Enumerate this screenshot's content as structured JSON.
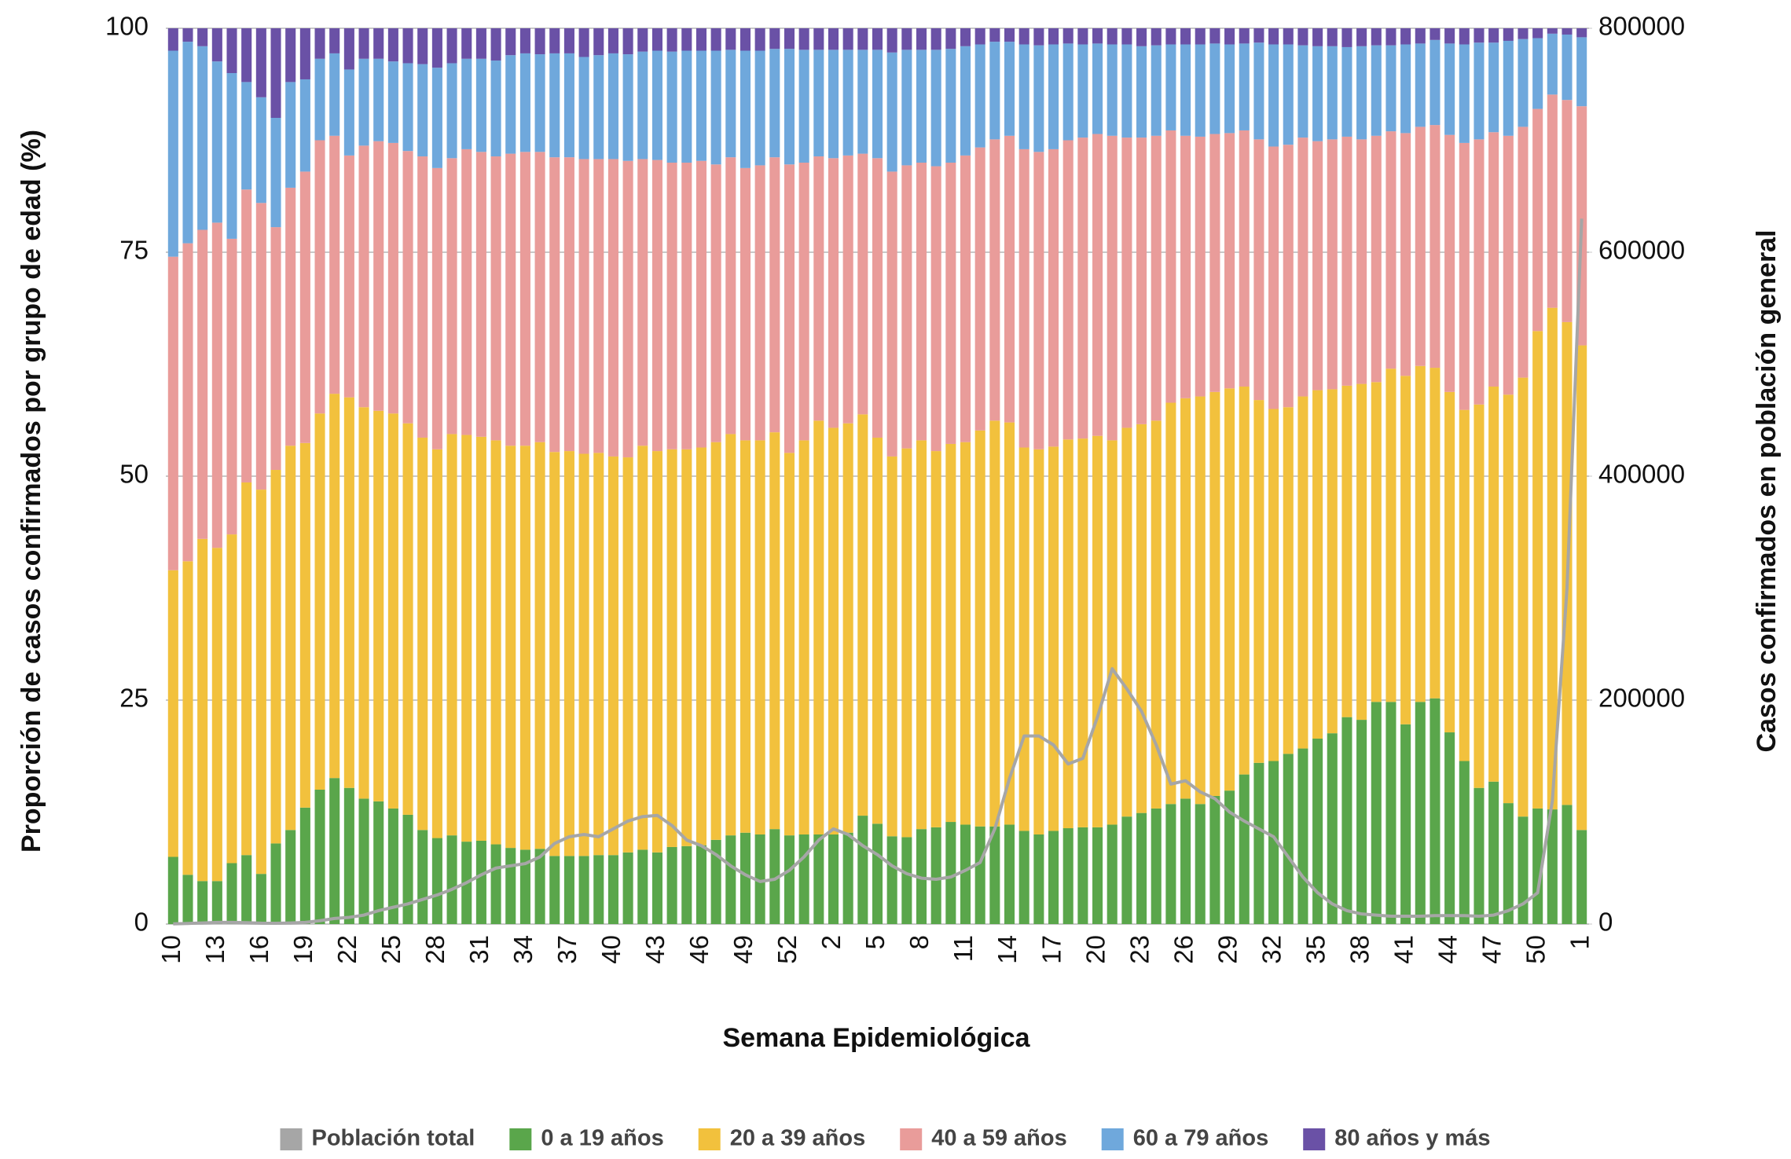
{
  "chart_data": {
    "type": "bar",
    "stacked": true,
    "x_label": "Semana Epidemiológica",
    "y_label": "Proporción de casos confirmados por grupo de edad (%)",
    "y2_label": "Casos confirmados en población general",
    "categories": [
      "10",
      null,
      null,
      "13",
      null,
      null,
      "16",
      null,
      null,
      "19",
      null,
      null,
      "22",
      null,
      null,
      "25",
      null,
      null,
      "28",
      null,
      null,
      "31",
      null,
      null,
      "34",
      null,
      null,
      "37",
      null,
      null,
      "40",
      null,
      null,
      "43",
      null,
      null,
      "46",
      null,
      null,
      "49",
      null,
      null,
      "52",
      null,
      null,
      "2",
      null,
      null,
      "5",
      null,
      null,
      "8",
      null,
      null,
      "11",
      null,
      null,
      "14",
      null,
      null,
      "17",
      null,
      null,
      "20",
      null,
      null,
      "23",
      null,
      null,
      "26",
      null,
      null,
      "29",
      null,
      null,
      "32",
      null,
      null,
      "35",
      null,
      null,
      "38",
      null,
      null,
      "41",
      null,
      null,
      "44",
      null,
      null,
      "47",
      null,
      null,
      "50",
      null,
      null,
      "1"
    ],
    "ylim": [
      0,
      100
    ],
    "yticks": [
      0,
      25,
      50,
      75,
      100
    ],
    "y2lim": [
      0,
      800000
    ],
    "y2ticks": [
      0,
      200000,
      400000,
      600000,
      800000
    ],
    "grid": true,
    "legend": "bottom",
    "series": [
      {
        "name": "Población total",
        "type": "line",
        "axis": "y2",
        "color": "#a6a6a6",
        "values": [
          200,
          500,
          1000,
          1500,
          1500,
          1200,
          800,
          700,
          1000,
          1500,
          3000,
          5000,
          6000,
          8000,
          12000,
          15000,
          18000,
          22000,
          26000,
          31000,
          37000,
          44000,
          50000,
          52000,
          54000,
          60000,
          72000,
          78000,
          80000,
          78000,
          85000,
          92000,
          96000,
          97000,
          88000,
          75000,
          70000,
          62000,
          52000,
          44000,
          38000,
          40000,
          48000,
          60000,
          75000,
          85000,
          80000,
          70000,
          62000,
          52000,
          45000,
          41000,
          40000,
          42000,
          48000,
          55000,
          85000,
          130000,
          168000,
          168000,
          160000,
          143000,
          148000,
          185000,
          228000,
          210000,
          190000,
          160000,
          125000,
          128000,
          118000,
          112000,
          100000,
          92000,
          85000,
          78000,
          60000,
          42000,
          28000,
          18000,
          12000,
          9000,
          8000,
          7000,
          7000,
          7000,
          7500,
          7500,
          7500,
          7000,
          8000,
          12000,
          18000,
          28000,
          110000,
          300000,
          630000
        ]
      },
      {
        "name": "0 a 19 años",
        "color": "#5aa64b",
        "values": [
          7.5,
          5.5,
          4.8,
          4.8,
          6.8,
          7.7,
          5.6,
          9.0,
          10.5,
          13.0,
          15.0,
          16.3,
          15.2,
          14.0,
          13.7,
          12.9,
          12.2,
          10.5,
          9.6,
          9.9,
          9.2,
          9.3,
          8.9,
          8.5,
          8.3,
          8.4,
          7.6,
          7.6,
          7.6,
          7.7,
          7.7,
          8.0,
          8.3,
          8.0,
          8.6,
          8.7,
          8.8,
          9.4,
          9.9,
          10.2,
          10.0,
          10.6,
          9.9,
          10.0,
          10.0,
          10.0,
          10.2,
          12.1,
          11.2,
          9.8,
          9.7,
          10.6,
          10.8,
          11.4,
          11.1,
          10.9,
          10.9,
          11.1,
          10.4,
          10.0,
          10.4,
          10.7,
          10.8,
          10.8,
          11.1,
          12.0,
          12.4,
          12.9,
          13.4,
          14.0,
          13.4,
          14.3,
          14.9,
          16.7,
          18.0,
          18.2,
          19.0,
          19.6,
          20.7,
          21.3,
          23.1,
          22.8,
          24.8,
          24.8,
          22.3,
          24.8,
          25.2,
          21.4,
          18.2,
          15.2,
          15.9,
          13.5,
          12.0,
          12.9,
          12.8,
          13.3,
          10.5
        ]
      },
      {
        "name": "20 a 39 años",
        "color": "#f2c13d",
        "values": [
          32.0,
          35.0,
          38.2,
          37.2,
          36.7,
          41.6,
          42.9,
          41.7,
          42.9,
          40.7,
          42.0,
          42.9,
          43.6,
          43.7,
          43.6,
          44.1,
          43.7,
          43.8,
          43.4,
          44.8,
          45.4,
          45.1,
          45.1,
          44.9,
          45.1,
          45.4,
          45.1,
          45.2,
          44.9,
          44.9,
          44.5,
          44.1,
          45.1,
          44.8,
          44.4,
          44.3,
          44.4,
          44.4,
          44.8,
          43.8,
          44.0,
          44.3,
          42.7,
          44.0,
          46.2,
          45.4,
          45.7,
          44.8,
          43.1,
          42.4,
          43.4,
          43.4,
          42.0,
          42.2,
          42.7,
          44.2,
          45.3,
          44.9,
          42.8,
          43.0,
          42.9,
          43.4,
          43.4,
          43.7,
          42.9,
          43.4,
          43.4,
          43.3,
          44.8,
          44.7,
          45.5,
          45.1,
          44.9,
          43.3,
          40.5,
          39.3,
          38.7,
          39.3,
          38.9,
          38.4,
          37.0,
          37.5,
          35.7,
          37.2,
          38.9,
          37.5,
          36.9,
          38.0,
          39.2,
          42.8,
          44.1,
          45.6,
          49.0,
          53.3,
          56.0,
          53.9,
          54.1
        ]
      },
      {
        "name": "40 a 59 años",
        "color": "#e99c9a",
        "values": [
          35.0,
          35.5,
          34.5,
          36.3,
          33.0,
          32.7,
          32.0,
          27.1,
          28.8,
          30.3,
          30.5,
          28.8,
          27.0,
          29.2,
          30.1,
          30.2,
          30.4,
          31.4,
          31.4,
          30.8,
          31.9,
          31.8,
          31.7,
          32.6,
          32.8,
          32.4,
          32.9,
          32.8,
          32.9,
          32.8,
          33.2,
          33.1,
          32.0,
          32.5,
          32.0,
          32.0,
          32.0,
          31.0,
          30.9,
          30.4,
          30.7,
          30.7,
          32.2,
          31.0,
          29.5,
          30.1,
          29.9,
          29.1,
          31.2,
          31.8,
          31.6,
          31.0,
          31.8,
          31.4,
          32.0,
          31.6,
          31.4,
          32.0,
          33.3,
          33.2,
          33.2,
          33.4,
          33.6,
          33.7,
          34.0,
          32.4,
          32.0,
          31.8,
          30.4,
          29.3,
          29.0,
          28.8,
          28.5,
          28.6,
          29.1,
          29.3,
          29.3,
          28.9,
          27.8,
          27.9,
          27.8,
          27.3,
          27.5,
          26.5,
          27.1,
          26.7,
          27.1,
          28.7,
          29.8,
          29.6,
          28.4,
          28.9,
          28.0,
          24.8,
          23.8,
          24.8,
          26.7
        ]
      },
      {
        "name": "60 a 79 años",
        "color": "#6fa8dc",
        "values": [
          23.0,
          22.5,
          20.5,
          18.0,
          18.5,
          12.0,
          11.8,
          12.2,
          11.8,
          10.3,
          9.1,
          9.2,
          9.6,
          9.7,
          9.2,
          9.1,
          9.8,
          10.3,
          11.2,
          10.6,
          10.1,
          10.4,
          10.7,
          11.0,
          11.0,
          10.9,
          11.6,
          11.6,
          11.4,
          11.6,
          11.8,
          11.9,
          12.0,
          12.2,
          12.4,
          12.5,
          12.3,
          12.7,
          12.0,
          13.1,
          12.8,
          12.1,
          12.9,
          12.6,
          11.9,
          12.1,
          11.8,
          11.6,
          12.1,
          13.3,
          12.9,
          12.6,
          13.0,
          12.7,
          12.2,
          11.5,
          10.9,
          10.5,
          11.7,
          11.9,
          11.7,
          10.8,
          10.4,
          10.1,
          10.2,
          10.4,
          10.2,
          10.1,
          9.6,
          10.2,
          10.3,
          10.1,
          9.9,
          9.7,
          10.8,
          11.4,
          11.2,
          10.3,
          10.6,
          10.4,
          10.0,
          10.4,
          10.1,
          9.6,
          9.9,
          9.3,
          9.5,
          10.2,
          11.0,
          10.8,
          10.0,
          10.6,
          9.8,
          7.9,
          6.8,
          7.3,
          7.7
        ]
      },
      {
        "name": "80 años y más",
        "color": "#6a51a6",
        "values": [
          2.5,
          1.5,
          2.0,
          3.7,
          5.0,
          6.0,
          7.7,
          10.0,
          6.0,
          5.7,
          3.4,
          2.8,
          4.6,
          3.4,
          3.4,
          3.7,
          3.9,
          4.0,
          4.4,
          3.9,
          3.4,
          3.4,
          3.6,
          3.0,
          2.8,
          2.9,
          2.8,
          2.8,
          3.2,
          3.0,
          2.8,
          2.9,
          2.6,
          2.5,
          2.6,
          2.5,
          2.5,
          2.5,
          2.4,
          2.5,
          2.5,
          2.3,
          2.3,
          2.4,
          2.4,
          2.4,
          2.4,
          2.4,
          2.4,
          2.7,
          2.4,
          2.4,
          2.4,
          2.3,
          2.0,
          1.8,
          1.5,
          1.5,
          1.8,
          1.9,
          1.8,
          1.7,
          1.8,
          1.7,
          1.8,
          1.8,
          2.0,
          1.9,
          1.8,
          1.8,
          1.8,
          1.7,
          1.8,
          1.7,
          1.6,
          1.8,
          1.8,
          1.9,
          2.0,
          2.0,
          2.1,
          2.0,
          1.9,
          1.9,
          1.8,
          1.7,
          1.3,
          1.7,
          1.8,
          1.6,
          1.6,
          1.4,
          1.2,
          1.1,
          0.6,
          0.7,
          1.0
        ]
      }
    ]
  }
}
